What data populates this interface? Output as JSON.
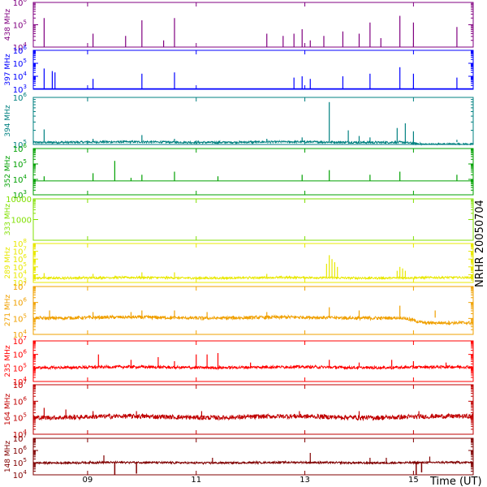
{
  "figure_id": "NRHR 20050704",
  "x_axis": {
    "label": "Time (UT)",
    "ticks": [
      {
        "value": 9,
        "label": "09"
      },
      {
        "value": 11,
        "label": "11"
      },
      {
        "value": 13,
        "label": "13"
      },
      {
        "value": 15,
        "label": "15"
      }
    ]
  },
  "chart_data": [
    {
      "type": "line",
      "freq_label": "438 MHz",
      "color": "#800080",
      "scale": "log",
      "ylim": [
        4,
        6
      ],
      "yticks": [
        {
          "v": 4,
          "b": "10",
          "e": "4"
        },
        {
          "v": 5,
          "b": "10",
          "e": "5"
        },
        {
          "v": 6,
          "b": "10",
          "e": "6"
        }
      ],
      "baseline": 4.0,
      "noise": 0.0,
      "spikes": [
        [
          8.2,
          5.3
        ],
        [
          9.1,
          4.6
        ],
        [
          9.7,
          4.5
        ],
        [
          10.0,
          5.2
        ],
        [
          10.4,
          4.3
        ],
        [
          10.6,
          5.3
        ],
        [
          12.3,
          4.6
        ],
        [
          12.6,
          4.5
        ],
        [
          12.8,
          4.6
        ],
        [
          12.95,
          4.8
        ],
        [
          13.1,
          4.3
        ],
        [
          13.35,
          4.5
        ],
        [
          13.7,
          4.7
        ],
        [
          14.0,
          4.6
        ],
        [
          14.2,
          5.1
        ],
        [
          14.4,
          4.4
        ],
        [
          14.75,
          5.4
        ],
        [
          15.0,
          5.1
        ],
        [
          15.8,
          4.9
        ]
      ]
    },
    {
      "type": "line",
      "freq_label": "397 MHz",
      "color": "#0000ff",
      "scale": "log",
      "ylim": [
        3,
        6
      ],
      "yticks": [
        {
          "v": 3,
          "b": "10",
          "e": "3"
        },
        {
          "v": 4,
          "b": "10",
          "e": "4"
        },
        {
          "v": 5,
          "b": "10",
          "e": "5"
        },
        {
          "v": 6,
          "b": "10",
          "e": "6"
        }
      ],
      "baseline": 3.05,
      "noise": 0.0,
      "spikes": [
        [
          8.2,
          4.6
        ],
        [
          8.35,
          4.4
        ],
        [
          8.4,
          4.3
        ],
        [
          9.1,
          3.8
        ],
        [
          10.0,
          4.2
        ],
        [
          10.6,
          4.3
        ],
        [
          12.8,
          3.9
        ],
        [
          12.95,
          4.0
        ],
        [
          13.1,
          3.8
        ],
        [
          13.7,
          4.0
        ],
        [
          14.2,
          4.2
        ],
        [
          14.75,
          4.7
        ],
        [
          15.0,
          4.2
        ],
        [
          15.8,
          3.9
        ]
      ]
    },
    {
      "type": "line",
      "freq_label": "394 MHz",
      "color": "#008080",
      "scale": "log",
      "ylim": [
        5,
        6
      ],
      "yticks": [
        {
          "v": 5,
          "b": "10",
          "e": "5"
        },
        {
          "v": 6,
          "b": "10",
          "e": "6"
        }
      ],
      "baseline": 5.05,
      "noise": 0.02,
      "dip_start": 14.8,
      "dip_end": 16.0,
      "dip_depth": 0.05,
      "spikes": [
        [
          8.2,
          5.32
        ],
        [
          9.1,
          5.12
        ],
        [
          10.0,
          5.2
        ],
        [
          10.6,
          5.12
        ],
        [
          12.3,
          5.12
        ],
        [
          12.95,
          5.15
        ],
        [
          13.45,
          5.9
        ],
        [
          13.8,
          5.3
        ],
        [
          14.0,
          5.18
        ],
        [
          14.2,
          5.15
        ],
        [
          14.7,
          5.35
        ],
        [
          14.85,
          5.45
        ],
        [
          15.0,
          5.28
        ],
        [
          15.8,
          5.1
        ]
      ]
    },
    {
      "type": "line",
      "freq_label": "352 MHz",
      "color": "#00a000",
      "scale": "log",
      "ylim": [
        3,
        6
      ],
      "yticks": [
        {
          "v": 3,
          "b": "10",
          "e": "3"
        },
        {
          "v": 4,
          "b": "10",
          "e": "4"
        },
        {
          "v": 5,
          "b": "10",
          "e": "5"
        },
        {
          "v": 6,
          "b": "10",
          "e": "6"
        }
      ],
      "baseline": 3.9,
      "noise": 0.0,
      "spikes": [
        [
          8.2,
          4.2
        ],
        [
          9.1,
          4.4
        ],
        [
          9.5,
          5.2
        ],
        [
          9.8,
          4.1
        ],
        [
          10.0,
          4.3
        ],
        [
          10.6,
          4.5
        ],
        [
          11.4,
          4.2
        ],
        [
          12.95,
          4.3
        ],
        [
          13.45,
          4.6
        ],
        [
          14.2,
          4.3
        ],
        [
          14.75,
          4.5
        ],
        [
          15.8,
          4.3
        ]
      ]
    },
    {
      "type": "line",
      "freq_label": "333 MHz",
      "color": "#80e000",
      "scale": "log",
      "ylim": [
        2,
        4
      ],
      "yticks": [
        {
          "v": 3,
          "b": "1000",
          "e": ""
        },
        {
          "v": 4,
          "b": "10000",
          "e": ""
        }
      ],
      "baseline": null,
      "noise": 0.0,
      "spikes": []
    },
    {
      "type": "line",
      "freq_label": "289 MHz",
      "color": "#e8e800",
      "scale": "log",
      "ylim": [
        3,
        8
      ],
      "yticks": [
        {
          "v": 3,
          "b": "10",
          "e": "3"
        },
        {
          "v": 4,
          "b": "10",
          "e": "4"
        },
        {
          "v": 5,
          "b": "10",
          "e": "5"
        },
        {
          "v": 6,
          "b": "10",
          "e": "6"
        },
        {
          "v": 7,
          "b": "10",
          "e": "7"
        },
        {
          "v": 8,
          "b": "10",
          "e": "8"
        }
      ],
      "baseline": 3.6,
      "noise": 0.12,
      "spikes": [
        [
          8.2,
          4.2
        ],
        [
          9.1,
          4.1
        ],
        [
          10.0,
          4.3
        ],
        [
          10.6,
          4.3
        ],
        [
          12.3,
          4.1
        ],
        [
          13.4,
          5.4
        ],
        [
          13.45,
          6.5
        ],
        [
          13.5,
          6.0
        ],
        [
          13.55,
          5.6
        ],
        [
          13.6,
          5.0
        ],
        [
          14.7,
          4.5
        ],
        [
          14.75,
          5.0
        ],
        [
          14.8,
          4.8
        ],
        [
          14.85,
          4.5
        ]
      ]
    },
    {
      "type": "line",
      "freq_label": "271 MHz",
      "color": "#f0a000",
      "scale": "log",
      "ylim": [
        4,
        7
      ],
      "yticks": [
        {
          "v": 4,
          "b": "10",
          "e": "4"
        },
        {
          "v": 5,
          "b": "10",
          "e": "5"
        },
        {
          "v": 6,
          "b": "10",
          "e": "6"
        },
        {
          "v": 7,
          "b": "10",
          "e": "7"
        }
      ],
      "baseline": 5.05,
      "noise": 0.1,
      "dip_start": 14.8,
      "dip_end": 16.0,
      "dip_depth": 0.35,
      "spikes": [
        [
          8.3,
          5.5
        ],
        [
          9.1,
          5.4
        ],
        [
          9.8,
          5.4
        ],
        [
          10.0,
          5.5
        ],
        [
          10.6,
          5.5
        ],
        [
          11.2,
          5.4
        ],
        [
          12.3,
          5.4
        ],
        [
          13.45,
          5.7
        ],
        [
          14.0,
          5.5
        ],
        [
          14.75,
          5.8
        ],
        [
          15.4,
          5.5
        ]
      ]
    },
    {
      "type": "line",
      "freq_label": "235 MHz",
      "color": "#ff0000",
      "scale": "log",
      "ylim": [
        4,
        7
      ],
      "yticks": [
        {
          "v": 4,
          "b": "10",
          "e": "4"
        },
        {
          "v": 5,
          "b": "10",
          "e": "5"
        },
        {
          "v": 6,
          "b": "10",
          "e": "6"
        },
        {
          "v": 7,
          "b": "10",
          "e": "7"
        }
      ],
      "baseline": 5.05,
      "noise": 0.1,
      "spikes": [
        [
          9.2,
          6.0
        ],
        [
          9.8,
          5.6
        ],
        [
          10.3,
          5.8
        ],
        [
          10.6,
          5.5
        ],
        [
          11.0,
          6.0
        ],
        [
          11.2,
          6.0
        ],
        [
          11.4,
          6.1
        ],
        [
          12.0,
          5.4
        ],
        [
          13.45,
          5.6
        ],
        [
          14.0,
          5.4
        ],
        [
          14.6,
          5.6
        ],
        [
          15.0,
          5.5
        ],
        [
          15.6,
          5.4
        ]
      ]
    },
    {
      "type": "line",
      "freq_label": "164 MHz",
      "color": "#c00000",
      "scale": "log",
      "ylim": [
        4,
        7
      ],
      "yticks": [
        {
          "v": 4,
          "b": "10",
          "e": "4"
        },
        {
          "v": 5,
          "b": "10",
          "e": "5"
        },
        {
          "v": 6,
          "b": "10",
          "e": "6"
        },
        {
          "v": 7,
          "b": "10",
          "e": "7"
        }
      ],
      "baseline": 5.05,
      "noise": 0.14,
      "spikes": [
        [
          8.2,
          5.6
        ],
        [
          8.6,
          5.5
        ],
        [
          9.1,
          5.4
        ],
        [
          9.9,
          5.4
        ],
        [
          11.1,
          5.4
        ],
        [
          12.9,
          5.4
        ],
        [
          14.0,
          5.4
        ],
        [
          15.1,
          5.4
        ]
      ]
    },
    {
      "type": "line",
      "freq_label": "148 MHz",
      "color": "#800000",
      "scale": "log",
      "ylim": [
        4,
        7
      ],
      "yticks": [
        {
          "v": 4,
          "b": "10",
          "e": "4"
        },
        {
          "v": 5,
          "b": "10",
          "e": "5"
        },
        {
          "v": 6,
          "b": "10",
          "e": "6"
        },
        {
          "v": 7,
          "b": "10",
          "e": "7"
        }
      ],
      "baseline": 5.0,
      "noise": 0.07,
      "spikes": [
        [
          9.3,
          5.6
        ],
        [
          11.3,
          5.4
        ],
        [
          13.1,
          5.8
        ],
        [
          14.2,
          5.4
        ],
        [
          14.5,
          5.4
        ],
        [
          15.3,
          5.5
        ]
      ],
      "dips": [
        [
          9.5,
          4.0
        ],
        [
          9.9,
          4.1
        ],
        [
          15.05,
          3.9
        ],
        [
          15.15,
          4.2
        ]
      ]
    }
  ]
}
